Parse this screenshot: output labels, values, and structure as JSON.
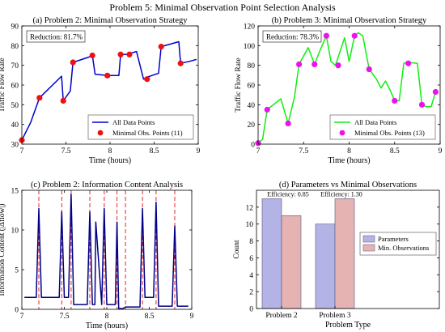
{
  "figure": {
    "suptitle": "Problem 5: Minimal Observation Point Selection Analysis"
  },
  "colors": {
    "p2_line": "#0000cc",
    "p2_marker": "#ee1111",
    "p3_line": "#11ee11",
    "p3_marker": "#ee11ee",
    "info_line": "#000088",
    "info_vline": "#ee2222",
    "bar_params": "#b3b3e6",
    "bar_minobs": "#e6b3b3",
    "bar_edge": "#555577"
  },
  "chart_data": [
    {
      "id": "a",
      "type": "line",
      "title": "(a) Problem 2: Minimal Observation Strategy",
      "xlabel": "Time (hours)",
      "ylabel": "Traffic Flow Rate",
      "xlim": [
        7,
        9
      ],
      "ylim": [
        30,
        90
      ],
      "xticks": [
        7,
        7.5,
        8,
        8.5,
        9
      ],
      "xtick_labels": [
        "7",
        "7.5",
        "8",
        "8.5",
        "9"
      ],
      "yticks": [
        30,
        40,
        50,
        60,
        70,
        80,
        90
      ],
      "ytick_labels": [
        "30",
        "40",
        "50",
        "60",
        "70",
        "80",
        "90"
      ],
      "annotation": "Reduction: 81.7%",
      "legend": {
        "position": "bottom-right",
        "line_label": "All Data Points",
        "marker_label": "Minimal Obs. Points (11)"
      },
      "line": {
        "x": [
          7.0,
          7.1,
          7.2,
          7.45,
          7.47,
          7.55,
          7.58,
          7.75,
          7.8,
          7.83,
          7.97,
          8.1,
          8.12,
          8.18,
          8.3,
          8.38,
          8.42,
          8.55,
          8.58,
          8.78,
          8.8,
          8.9,
          8.98
        ],
        "y": [
          32,
          41,
          53.5,
          64.5,
          52,
          57,
          71.5,
          74,
          75,
          65.5,
          64.8,
          64.8,
          75.5,
          75.5,
          77,
          63,
          64,
          66,
          79.5,
          82,
          71,
          72,
          73
        ]
      },
      "markers": {
        "x": [
          7.0,
          7.2,
          7.47,
          7.58,
          7.8,
          7.97,
          8.12,
          8.22,
          8.42,
          8.58,
          8.8
        ],
        "y": [
          32,
          53.5,
          52,
          71.5,
          75,
          64.8,
          75.5,
          75.5,
          63,
          79.5,
          71
        ]
      }
    },
    {
      "id": "b",
      "type": "line",
      "title": "(b) Problem 3: Minimal Observation Strategy",
      "xlabel": "Time (hours)",
      "ylabel": "Traffic Flow Rate",
      "xlim": [
        7,
        9
      ],
      "ylim": [
        0,
        120
      ],
      "xticks": [
        7,
        7.5,
        8,
        8.5,
        9
      ],
      "xtick_labels": [
        "7",
        "7.5",
        "8",
        "8.5",
        "9"
      ],
      "yticks": [
        0,
        20,
        40,
        60,
        80,
        100,
        120
      ],
      "ytick_labels": [
        "0",
        "20",
        "40",
        "60",
        "80",
        "100",
        "120"
      ],
      "annotation": "Reduction: 78.3%",
      "legend": {
        "position": "bottom-right",
        "line_label": "All Data Points",
        "marker_label": "Minimal Obs. Points (13)"
      },
      "line": {
        "x": [
          7.0,
          7.05,
          7.1,
          7.25,
          7.33,
          7.4,
          7.45,
          7.55,
          7.62,
          7.68,
          7.75,
          7.8,
          7.85,
          7.95,
          8.0,
          8.06,
          8.1,
          8.15,
          8.22,
          8.3,
          8.35,
          8.4,
          8.45,
          8.5,
          8.55,
          8.6,
          8.65,
          8.75,
          8.8,
          8.85,
          8.9,
          8.95
        ],
        "y": [
          1,
          5,
          35,
          46,
          21,
          48,
          81,
          98,
          81,
          95,
          110,
          84,
          80,
          108,
          84,
          110,
          113,
          110,
          76,
          66,
          57,
          64,
          55,
          44,
          44,
          82,
          83,
          82,
          40,
          38,
          38,
          53
        ]
      },
      "markers": {
        "x": [
          7.0,
          7.1,
          7.33,
          7.45,
          7.62,
          7.75,
          7.88,
          8.06,
          8.22,
          8.5,
          8.65,
          8.8,
          8.95
        ],
        "y": [
          1,
          35,
          21,
          81,
          81,
          110,
          80,
          110,
          76,
          44,
          82,
          40,
          53
        ]
      }
    },
    {
      "id": "c",
      "type": "line",
      "title": "(c) Problem 2: Information Content Analysis",
      "xlabel": "Time (hours)",
      "ylabel": "Information Content (|Δflow|)",
      "xlim": [
        7,
        9
      ],
      "ylim": [
        0,
        15
      ],
      "xticks": [
        7,
        7.5,
        8,
        8.5,
        9
      ],
      "xtick_labels": [
        "7",
        "7.5",
        "8",
        "8.5",
        "9"
      ],
      "yticks": [
        0,
        5,
        10,
        15
      ],
      "ytick_labels": [
        "0",
        "5",
        "10",
        "15"
      ],
      "vlines_x": [
        7.2,
        7.47,
        7.58,
        7.8,
        7.97,
        8.12,
        8.22,
        8.42,
        8.58,
        8.8
      ],
      "line": {
        "x": [
          7.03,
          7.17,
          7.2,
          7.23,
          7.44,
          7.47,
          7.5,
          7.55,
          7.58,
          7.61,
          7.77,
          7.8,
          7.83,
          7.86,
          7.87,
          7.94,
          7.97,
          8.0,
          8.1,
          8.12,
          8.14,
          8.19,
          8.22,
          8.26,
          8.39,
          8.42,
          8.45,
          8.48,
          8.55,
          8.58,
          8.61,
          8.77,
          8.8,
          8.83,
          8.96
        ],
        "y": [
          1.5,
          1.5,
          12.7,
          1.5,
          1.5,
          12.3,
          1.5,
          1.5,
          14.5,
          0.6,
          0.6,
          12.3,
          0.6,
          0.6,
          11,
          0.6,
          12.7,
          0.6,
          0.6,
          11,
          0.1,
          0.1,
          0.3,
          0.3,
          0.3,
          12.7,
          1.5,
          1.5,
          1.5,
          13.5,
          0.4,
          0.4,
          10.5,
          0.4,
          0.4
        ]
      }
    },
    {
      "id": "d",
      "type": "bar",
      "title": "(d) Parameters vs Minimal Observations",
      "xlabel": "Problem Type",
      "ylabel": "Count",
      "ylim": [
        0,
        14
      ],
      "yticks": [
        0,
        2,
        4,
        6,
        8,
        10,
        12
      ],
      "ytick_labels": [
        "0",
        "2",
        "4",
        "6",
        "8",
        "10",
        "12"
      ],
      "categories": [
        "Problem 2",
        "Problem 3"
      ],
      "series": [
        {
          "name": "Parameters",
          "values": [
            13,
            10
          ]
        },
        {
          "name": "Min. Observations",
          "values": [
            11,
            13
          ]
        }
      ],
      "efficiency_labels": [
        "Efficiency: 0.85",
        "Efficiency: 1.30"
      ],
      "legend": {
        "position": "center-right"
      }
    }
  ]
}
